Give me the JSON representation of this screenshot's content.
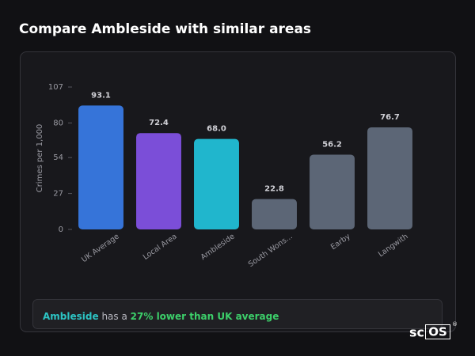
{
  "title": "Compare Ambleside with similar areas",
  "chart_data": {
    "type": "bar",
    "y_label": "Crimes per 1,000",
    "categories": [
      "UK Average",
      "Local Area",
      "Ambleside",
      "South Wons...",
      "Earby",
      "Langwith"
    ],
    "values": [
      93.1,
      72.4,
      68.0,
      22.8,
      56.2,
      76.7
    ],
    "value_labels": [
      "93.1",
      "72.4",
      "68.0",
      "22.8",
      "56.2",
      "76.7"
    ],
    "colors": [
      "#3674d9",
      "#7b4ed8",
      "#20b6cd",
      "#5c6676",
      "#5c6676",
      "#5c6676"
    ],
    "ylim": [
      0,
      107
    ],
    "yticks": [
      0,
      27,
      54,
      80,
      107
    ],
    "grid": false
  },
  "summary": {
    "area": "Ambleside",
    "text": "has a",
    "highlight": "27% lower than UK average"
  },
  "logo": {
    "text": "sc",
    "boxed": "OS",
    "mark": "®"
  }
}
